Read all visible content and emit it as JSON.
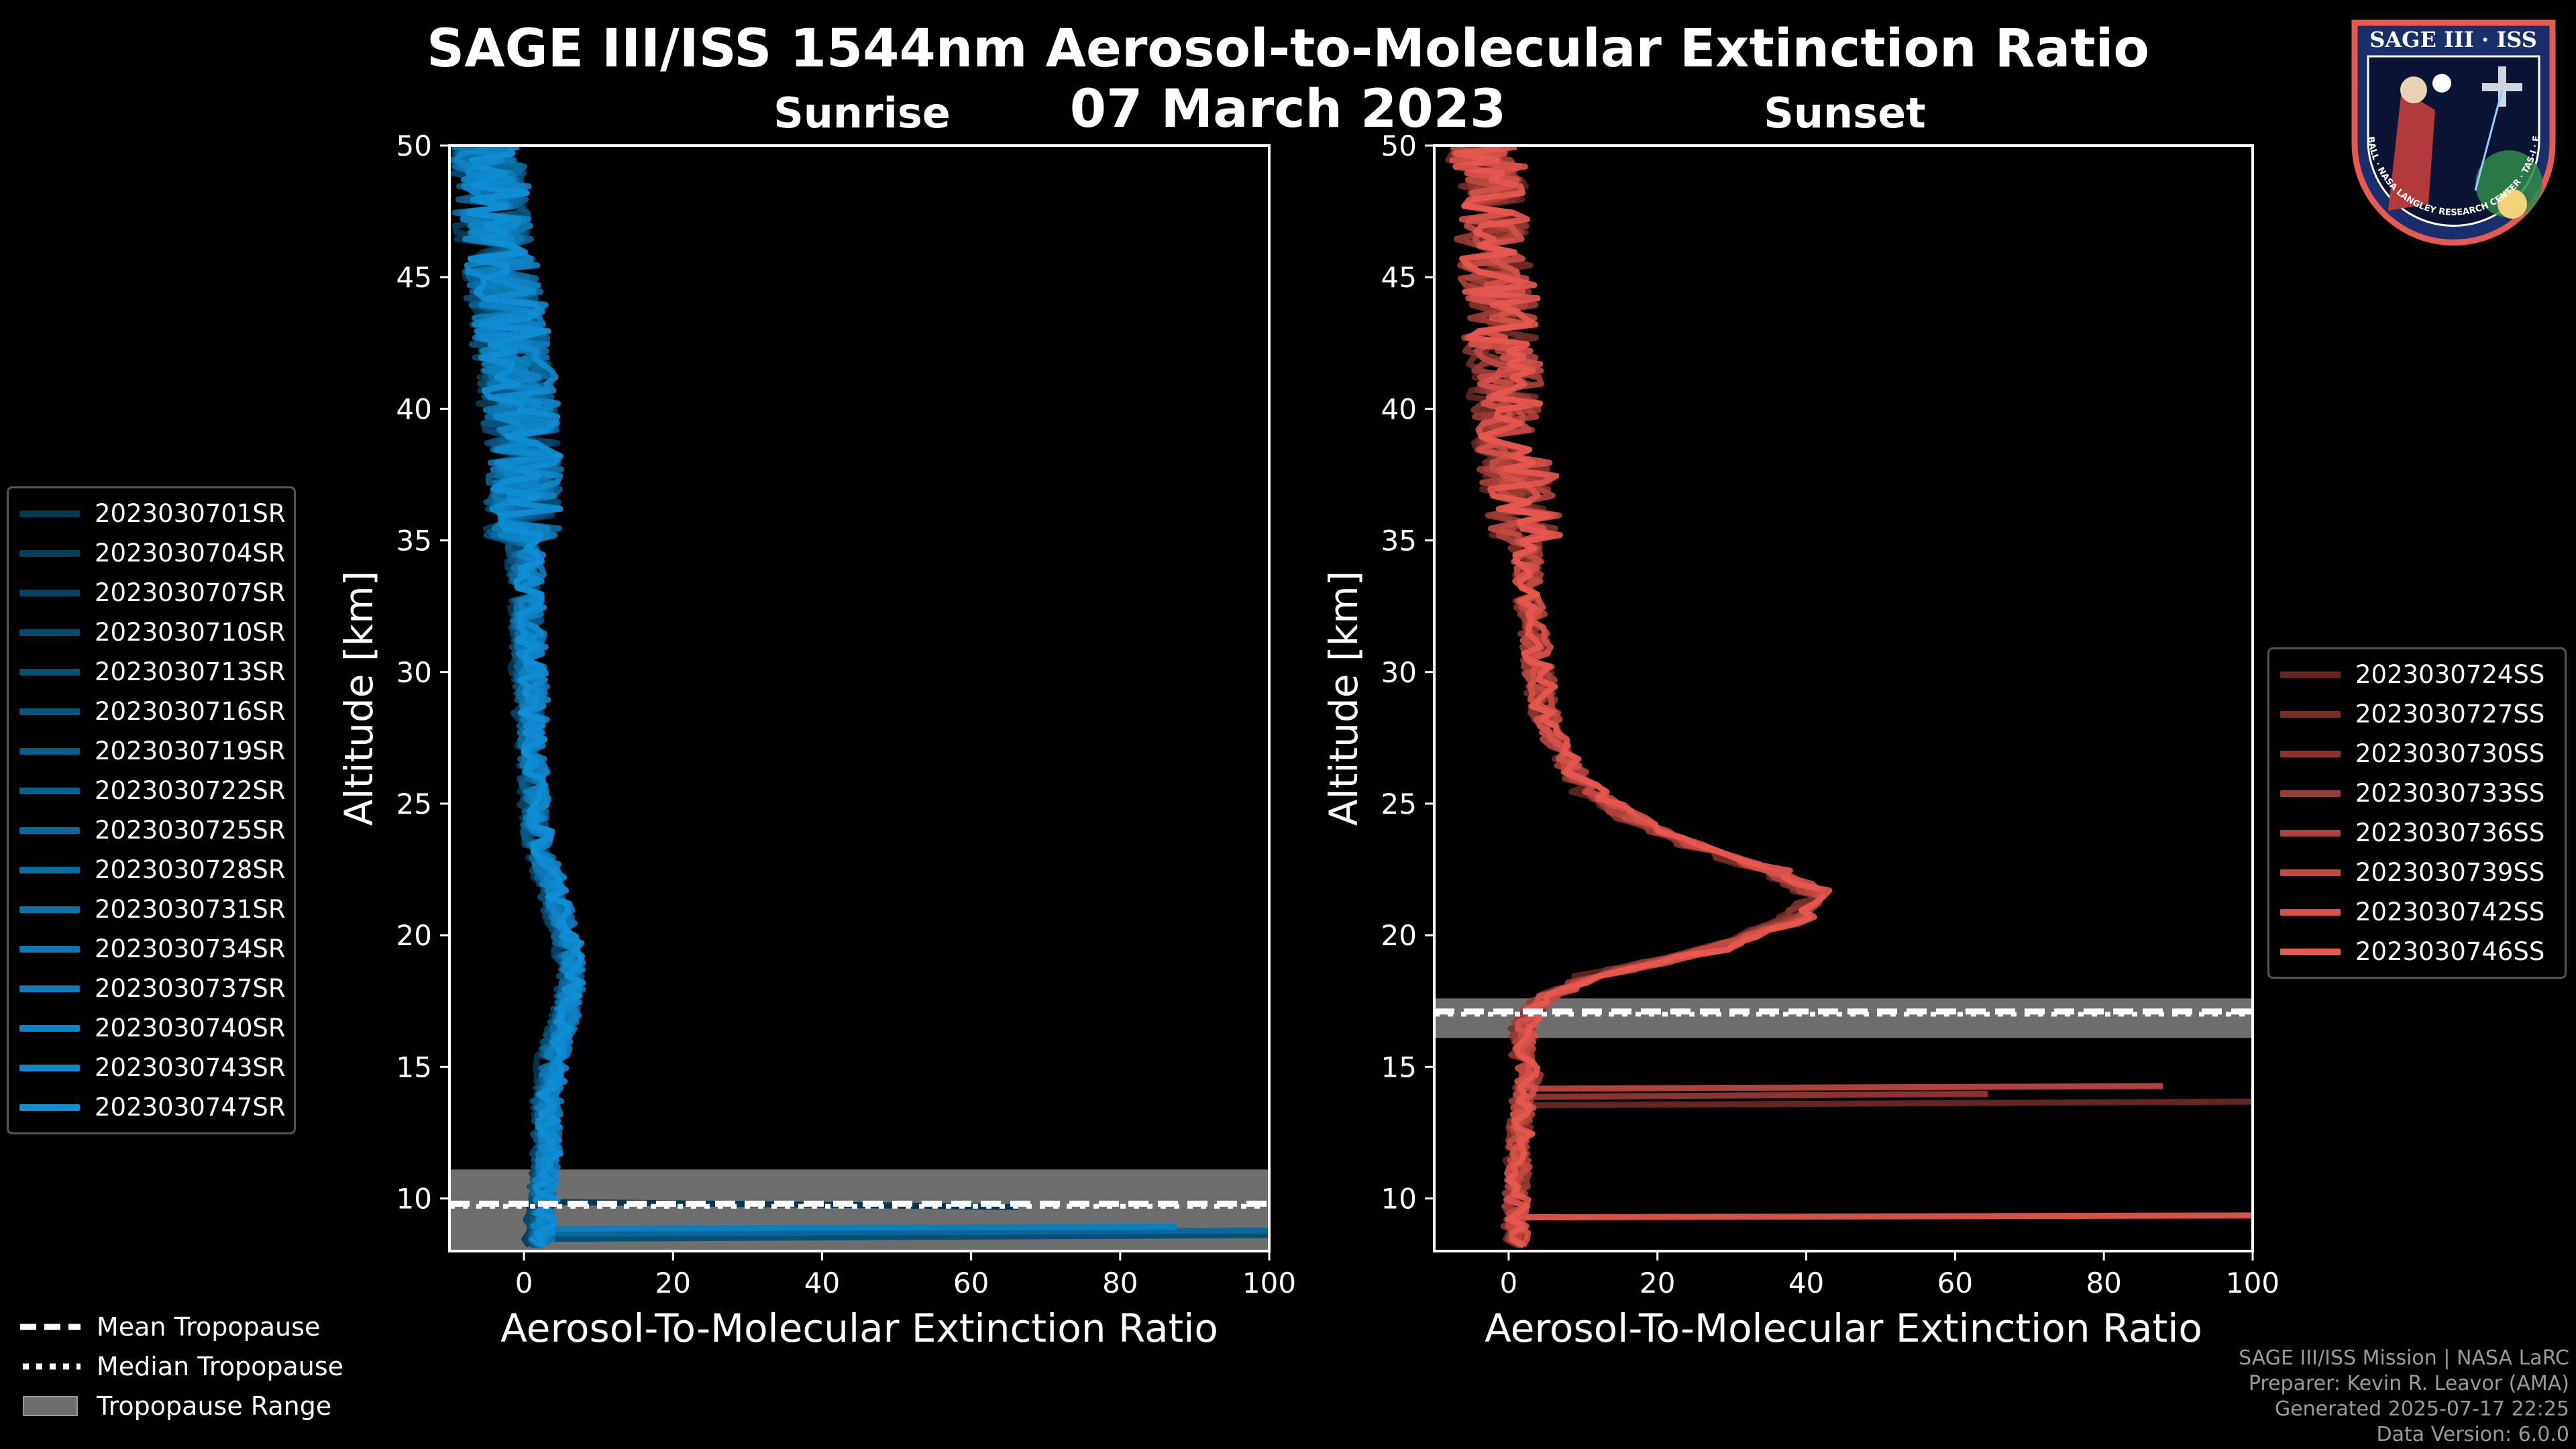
{
  "title_line1": "SAGE III/ISS 1544nm Aerosol-to-Molecular Extinction Ratio",
  "title_line2": "07 March 2023",
  "logo_text": "SAGE III · ISS",
  "logo_ring_text": "BALL · NASA LANGLEY RESEARCH CENTER · TAS-I · ESA",
  "footer": {
    "line1": "SAGE III/ISS Mission | NASA LaRC",
    "line2": "Preparer: Kevin R. Leavor (AMA)",
    "line3": "Generated 2025-07-17 22:25",
    "line4": "Data Version: 6.0.0"
  },
  "tropopause_legend": {
    "mean": "Mean Tropopause",
    "median": "Median Tropopause",
    "range": "Tropopause Range"
  },
  "colors": {
    "sunrise": "#0f8fd6",
    "sunset": "#e8594f",
    "tropo_band": "#6e6e6e",
    "axes": "#ffffff"
  },
  "chart_data": [
    {
      "type": "line",
      "title": "Sunrise",
      "xlabel": "Aerosol-To-Molecular Extinction Ratio",
      "ylabel": "Altitude [km]",
      "xlim": [
        -10,
        100
      ],
      "ylim": [
        8,
        50
      ],
      "xticks": [
        0,
        20,
        40,
        60,
        80,
        100
      ],
      "yticks": [
        10,
        15,
        20,
        25,
        30,
        35,
        40,
        45,
        50
      ],
      "tropopause": {
        "mean": 9.8,
        "median": 9.7,
        "range": [
          8.0,
          11.1
        ]
      },
      "series": [
        {
          "name": "2023030701SR"
        },
        {
          "name": "2023030704SR"
        },
        {
          "name": "2023030707SR"
        },
        {
          "name": "2023030710SR"
        },
        {
          "name": "2023030713SR"
        },
        {
          "name": "2023030716SR"
        },
        {
          "name": "2023030719SR"
        },
        {
          "name": "2023030722SR"
        },
        {
          "name": "2023030725SR"
        },
        {
          "name": "2023030728SR"
        },
        {
          "name": "2023030731SR"
        },
        {
          "name": "2023030734SR"
        },
        {
          "name": "2023030737SR"
        },
        {
          "name": "2023030740SR"
        },
        {
          "name": "2023030743SR"
        },
        {
          "name": "2023030747SR"
        }
      ],
      "mean_profile": {
        "altitude": [
          8.5,
          9.5,
          10.5,
          11.5,
          12.5,
          13.5,
          14.5,
          15.5,
          16.5,
          17.5,
          18.5,
          19.5,
          20.5,
          21.5,
          22.5,
          23.5,
          24.5,
          25.5,
          27,
          29,
          31,
          33,
          35,
          37,
          39,
          41,
          43,
          45,
          47,
          49.5
        ],
        "ratio": [
          2,
          2.5,
          2.5,
          3,
          3,
          3,
          3.5,
          4,
          5,
          6,
          6.5,
          6,
          5,
          4,
          3,
          2,
          1.5,
          1.5,
          1,
          1,
          0.5,
          0.5,
          0,
          0,
          0,
          -1,
          -2,
          -3,
          -4,
          -5
        ]
      }
    },
    {
      "type": "line",
      "title": "Sunset",
      "xlabel": "Aerosol-To-Molecular Extinction Ratio",
      "ylabel": "Altitude [km]",
      "xlim": [
        -10,
        100
      ],
      "ylim": [
        8,
        50
      ],
      "xticks": [
        0,
        20,
        40,
        60,
        80,
        100
      ],
      "yticks": [
        10,
        15,
        20,
        25,
        30,
        35,
        40,
        45,
        50
      ],
      "tropopause": {
        "mean": 17.1,
        "median": 17.0,
        "range": [
          16.1,
          17.6
        ]
      },
      "series": [
        {
          "name": "2023030724SS"
        },
        {
          "name": "2023030727SS"
        },
        {
          "name": "2023030730SS"
        },
        {
          "name": "2023030733SS"
        },
        {
          "name": "2023030736SS"
        },
        {
          "name": "2023030739SS"
        },
        {
          "name": "2023030742SS"
        },
        {
          "name": "2023030746SS"
        }
      ],
      "mean_profile": {
        "altitude": [
          8.5,
          10,
          12,
          14,
          14.8,
          15.5,
          16.5,
          17.5,
          18.5,
          19.5,
          20.5,
          21.5,
          22.5,
          23.5,
          24.5,
          25.5,
          26.5,
          27.5,
          28.5,
          30,
          32,
          34,
          36,
          38,
          40,
          42,
          44,
          46,
          48,
          49.5
        ],
        "ratio": [
          1,
          1,
          1.5,
          2,
          3,
          2,
          2,
          4,
          12,
          28,
          38,
          42,
          35,
          24,
          16,
          11,
          8,
          6,
          5,
          4,
          3,
          2.5,
          2,
          1,
          0,
          -1,
          -1,
          -2,
          -2,
          -3
        ]
      }
    }
  ]
}
